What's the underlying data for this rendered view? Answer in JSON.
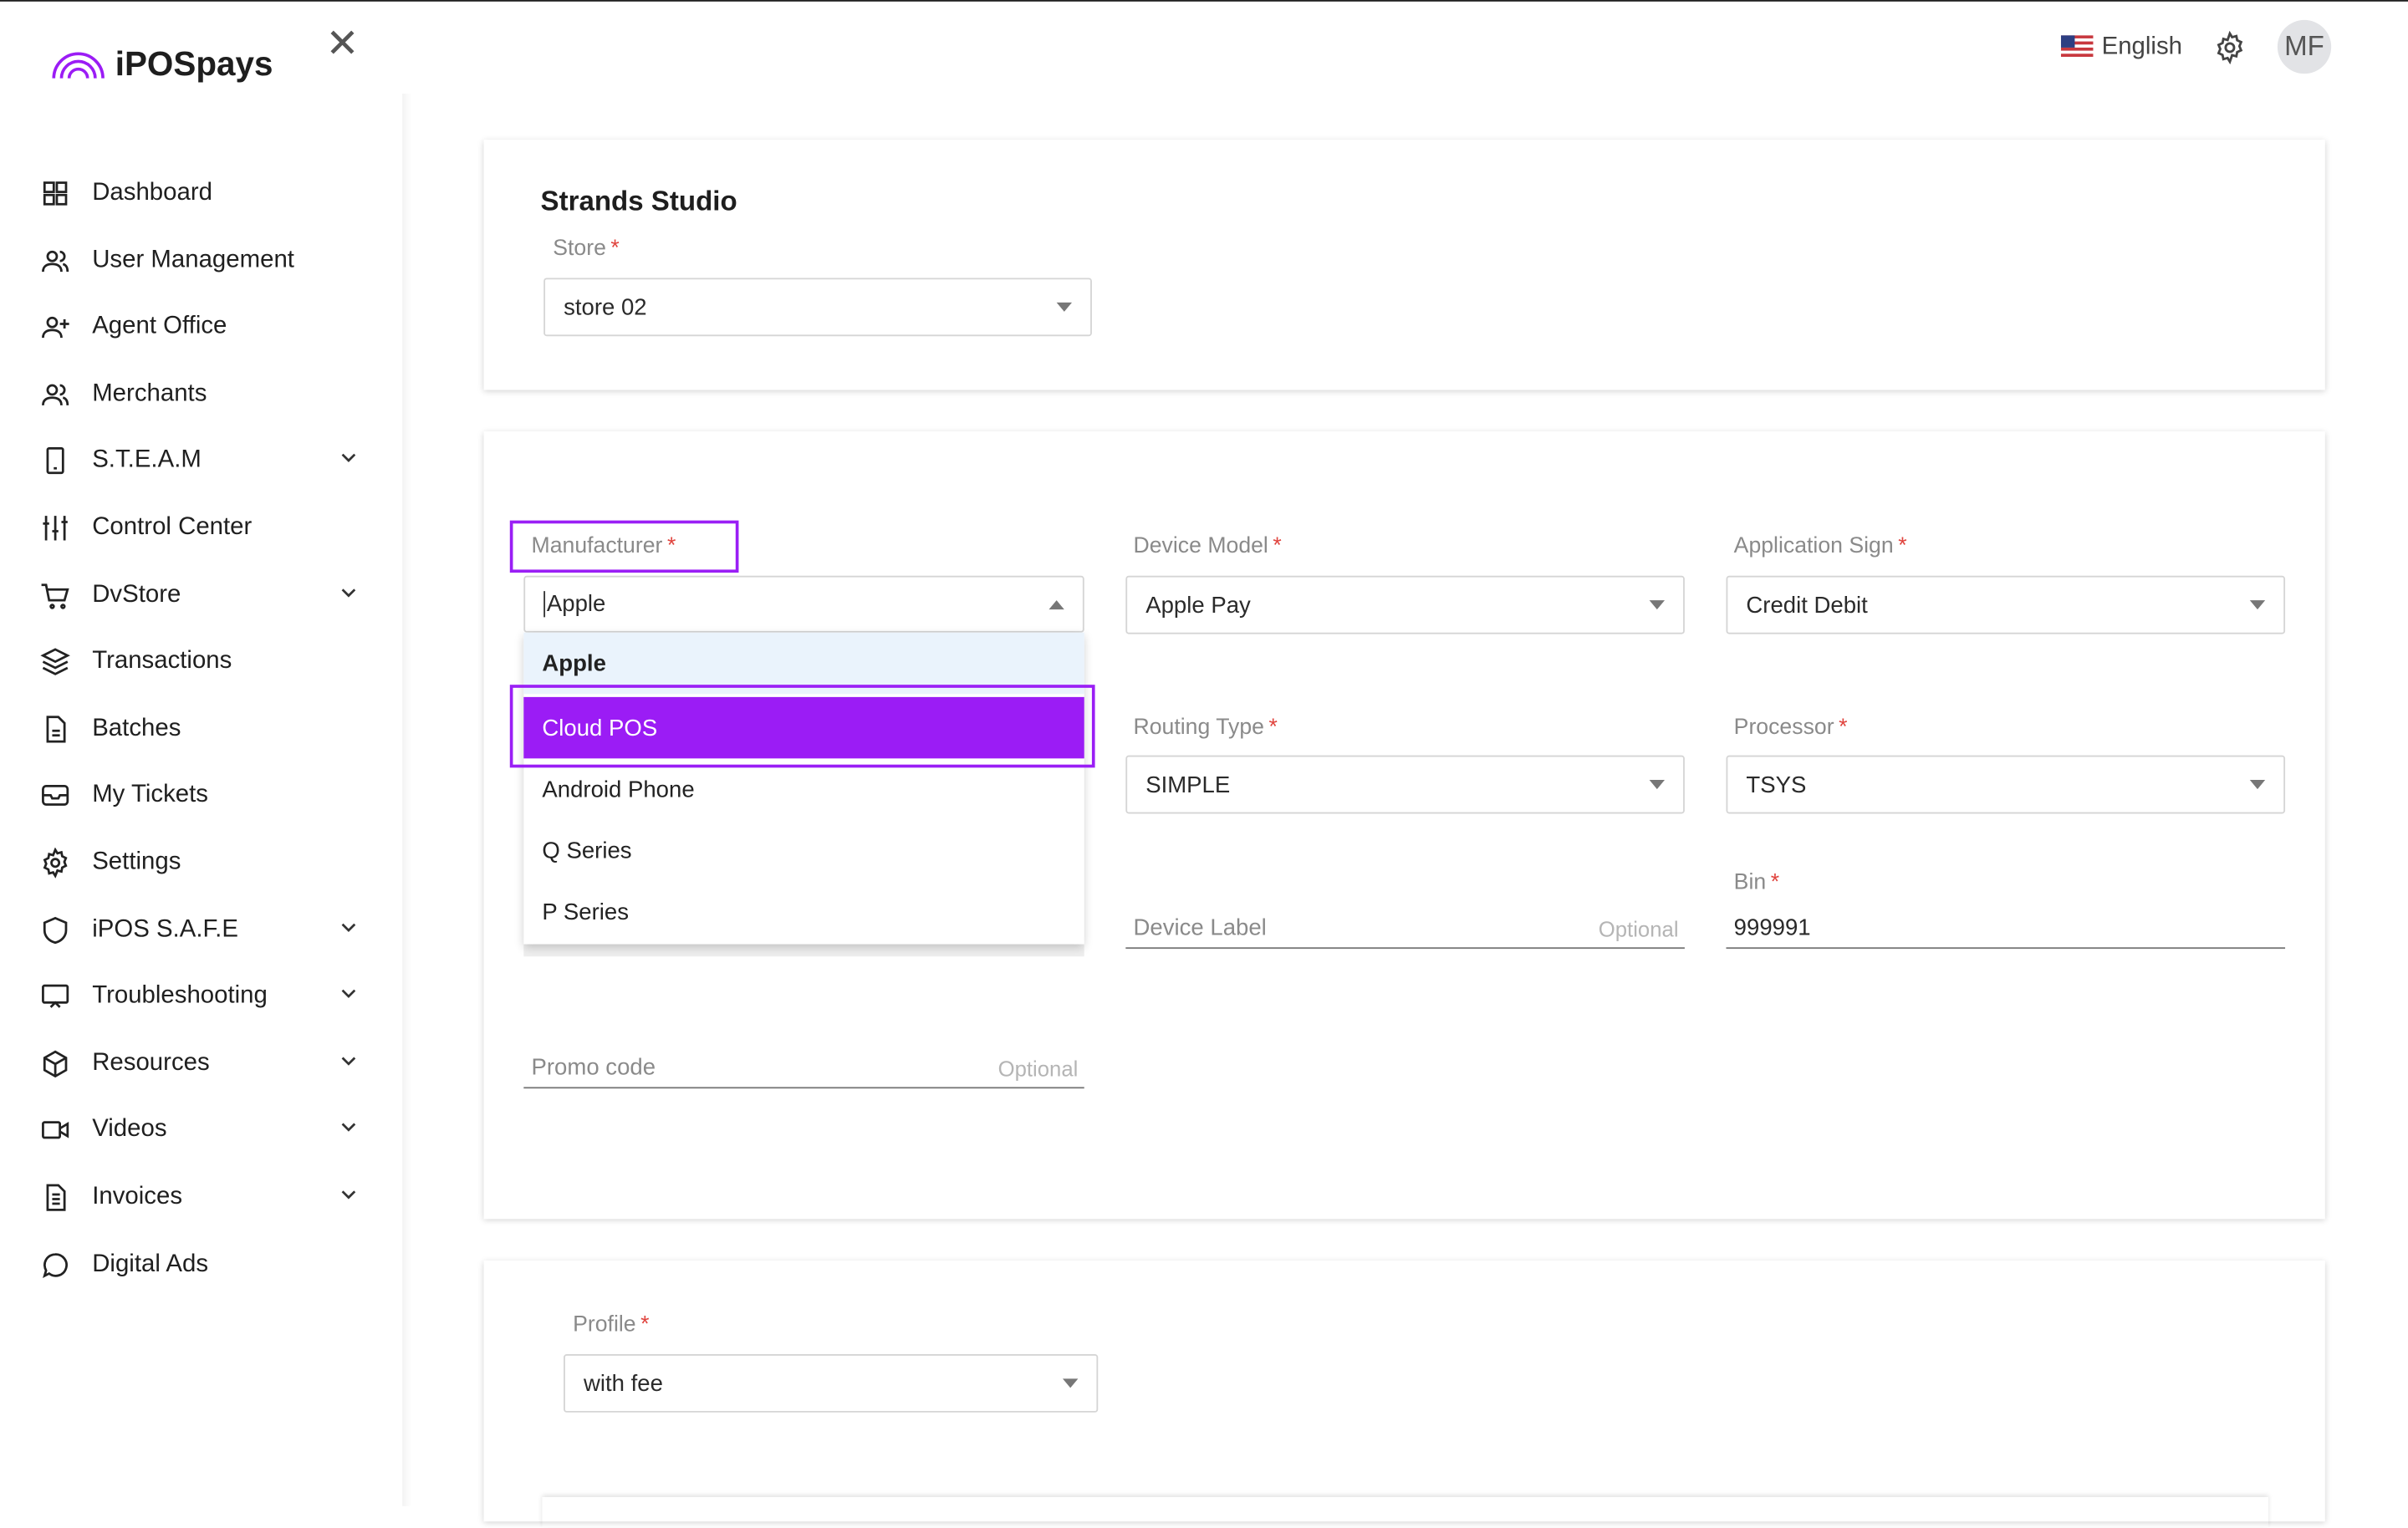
{
  "brand": {
    "name": "iPOSpays",
    "accent": "#9b1cf5"
  },
  "header": {
    "language": "English",
    "avatar_initials": "MF",
    "icons": [
      "us-flag-icon",
      "gear-icon"
    ]
  },
  "sidebar": {
    "items": [
      {
        "label": "Dashboard",
        "icon": "grid-icon",
        "expandable": false
      },
      {
        "label": "User Management",
        "icon": "users-icon",
        "expandable": false
      },
      {
        "label": "Agent Office",
        "icon": "user-plus-icon",
        "expandable": false
      },
      {
        "label": "Merchants",
        "icon": "users-icon",
        "expandable": false
      },
      {
        "label": "S.T.E.A.M",
        "icon": "tablet-icon",
        "expandable": true
      },
      {
        "label": "Control Center",
        "icon": "sliders-icon",
        "expandable": false
      },
      {
        "label": "DvStore",
        "icon": "cart-icon",
        "expandable": true
      },
      {
        "label": "Transactions",
        "icon": "layers-icon",
        "expandable": false
      },
      {
        "label": "Batches",
        "icon": "file-icon",
        "expandable": false
      },
      {
        "label": "My Tickets",
        "icon": "inbox-icon",
        "expandable": false
      },
      {
        "label": "Settings",
        "icon": "gear-icon",
        "expandable": false
      },
      {
        "label": "iPOS S.A.F.E",
        "icon": "shield-icon",
        "expandable": true
      },
      {
        "label": "Troubleshooting",
        "icon": "monitor-icon",
        "expandable": true
      },
      {
        "label": "Resources",
        "icon": "box-icon",
        "expandable": true
      },
      {
        "label": "Videos",
        "icon": "video-icon",
        "expandable": true
      },
      {
        "label": "Invoices",
        "icon": "document-icon",
        "expandable": true
      },
      {
        "label": "Digital Ads",
        "icon": "chat-icon",
        "expandable": false
      }
    ]
  },
  "store_card": {
    "title": "Strands Studio",
    "store_label": "Store",
    "store_value": "store 02"
  },
  "device_card": {
    "manufacturer": {
      "label": "Manufacturer",
      "value": "Apple",
      "options": [
        "Apple",
        "Cloud POS",
        "Android Phone",
        "Q Series",
        "P Series"
      ],
      "highlighted": "Cloud POS"
    },
    "device_model": {
      "label": "Device Model",
      "value": "Apple Pay"
    },
    "application_sign": {
      "label": "Application Sign",
      "value": "Credit Debit"
    },
    "routing_type": {
      "label": "Routing Type",
      "value": "SIMPLE"
    },
    "processor": {
      "label": "Processor",
      "value": "TSYS"
    },
    "device_label": {
      "placeholder": "Device Label",
      "hint": "Optional"
    },
    "bin": {
      "label": "Bin",
      "value": "999991"
    },
    "promo_code": {
      "placeholder": "Promo code",
      "hint": "Optional"
    },
    "required_mark": "*"
  },
  "profile_card": {
    "label": "Profile",
    "value": "with fee"
  }
}
